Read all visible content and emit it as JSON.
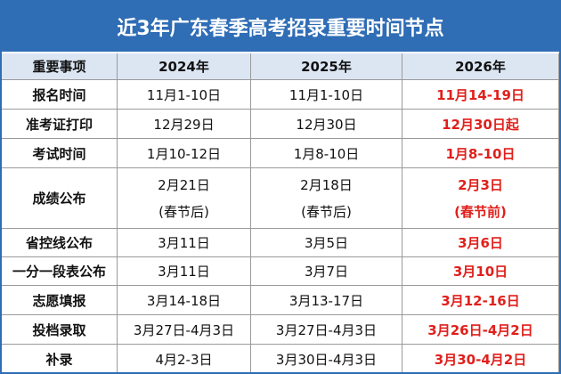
{
  "title": "近3年广东春季高考招录重要时间节点",
  "table": {
    "header": [
      "重要事项",
      "2024年",
      "2025年",
      "2026年"
    ],
    "rows": [
      [
        "报名时间",
        "11月1-10日",
        "11月1-10日",
        "11月14-19日"
      ],
      [
        "准考证打印",
        "12月29日",
        "12月30日",
        "12月30日起"
      ],
      [
        "考试时间",
        "1月10-12日",
        "1月8-10日",
        "1月8-10日"
      ],
      [
        "成绩公布",
        [
          "2月21日",
          "(春节后)"
        ],
        [
          "2月18日",
          "(春节后)"
        ],
        [
          "2月3日",
          "(春节前)"
        ]
      ],
      [
        "省控线公布",
        "3月11日",
        "3月5日",
        "3月6日"
      ],
      [
        "一分一段表公布",
        "3月11日",
        "3月7日",
        "3月10日"
      ],
      [
        "志愿填报",
        "3月14-18日",
        "3月13-17日",
        "3月12-16日"
      ],
      [
        "投档录取",
        "3月27日-4月3日",
        "3月27日-4月3日",
        "3月26日-4月2日"
      ],
      [
        "补录",
        "4月2-3日",
        "3月30日-4月3日",
        "3月30-4月2日"
      ]
    ]
  }
}
